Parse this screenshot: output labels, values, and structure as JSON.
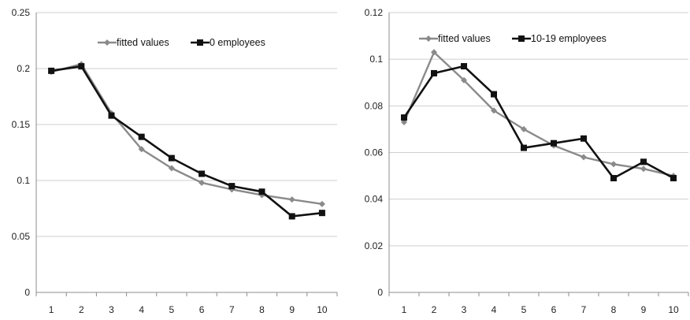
{
  "chart_data": [
    {
      "type": "line",
      "x": [
        1,
        2,
        3,
        4,
        5,
        6,
        7,
        8,
        9,
        10
      ],
      "ylim": [
        0,
        0.25
      ],
      "yticks": [
        "0",
        "0.05",
        "0.1",
        "0.15",
        "0.2",
        "0.25"
      ],
      "ytick_values": [
        0,
        0.05,
        0.1,
        0.15,
        0.2,
        0.25
      ],
      "xticks": [
        "1",
        "2",
        "3",
        "4",
        "5",
        "6",
        "7",
        "8",
        "9",
        "10"
      ],
      "grid": true,
      "legend_position": "top-center",
      "series": [
        {
          "name": "fitted values",
          "color": "#8a8a8a",
          "marker": "diamond",
          "values": [
            0.197,
            0.204,
            0.16,
            0.128,
            0.111,
            0.098,
            0.092,
            0.087,
            0.083,
            0.079
          ]
        },
        {
          "name": "0 employees",
          "color": "#111111",
          "marker": "square",
          "values": [
            0.198,
            0.202,
            0.158,
            0.139,
            0.12,
            0.106,
            0.095,
            0.09,
            0.068,
            0.071
          ]
        }
      ]
    },
    {
      "type": "line",
      "x": [
        1,
        2,
        3,
        4,
        5,
        6,
        7,
        8,
        9,
        10
      ],
      "ylim": [
        0,
        0.12
      ],
      "yticks": [
        "0",
        "0.02",
        "0.04",
        "0.06",
        "0.08",
        "0.1",
        "0.12"
      ],
      "ytick_values": [
        0,
        0.02,
        0.04,
        0.06,
        0.08,
        0.1,
        0.12
      ],
      "xticks": [
        "1",
        "2",
        "3",
        "4",
        "5",
        "6",
        "7",
        "8",
        "9",
        "10"
      ],
      "grid": true,
      "legend_position": "top-center",
      "series": [
        {
          "name": "fitted values",
          "color": "#8a8a8a",
          "marker": "diamond",
          "values": [
            0.073,
            0.103,
            0.091,
            0.078,
            0.07,
            0.063,
            0.058,
            0.055,
            0.053,
            0.05
          ]
        },
        {
          "name": "10-19 employees",
          "color": "#111111",
          "marker": "square",
          "values": [
            0.075,
            0.094,
            0.097,
            0.085,
            0.062,
            0.064,
            0.066,
            0.049,
            0.056,
            0.049
          ]
        }
      ]
    }
  ]
}
